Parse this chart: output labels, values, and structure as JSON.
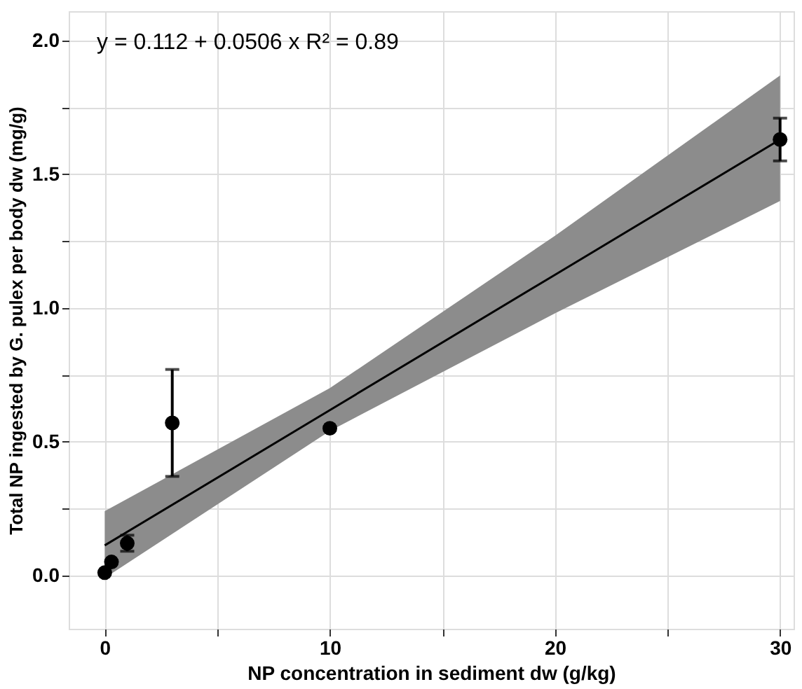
{
  "chart_data": {
    "type": "scatter",
    "xlabel": "NP concentration in sediment dw (g/kg)",
    "ylabel": "Total NP ingested by G. pulex per body dw (mg/g)",
    "x": [
      0,
      0.3,
      1,
      3,
      10,
      30
    ],
    "series": [
      {
        "color": "#000000",
        "marker": "circle",
        "values": [
          0.01,
          0.05,
          0.12,
          0.57,
          0.55,
          1.63
        ],
        "errors": [
          null,
          null,
          0.03,
          [
            0.37,
            0.77
          ],
          null,
          [
            1.55,
            1.71
          ]
        ]
      },
      {
        "type": "line",
        "color": "#000000",
        "line_style": "solid",
        "x": [
          0,
          10,
          20,
          30
        ],
        "values": [
          0.112,
          0.618,
          1.124,
          1.63
        ],
        "lower": [
          -0.01,
          0.54,
          0.98,
          1.4
        ],
        "upper": [
          0.24,
          0.7,
          1.27,
          1.87
        ]
      }
    ],
    "xlim": [
      -1.6,
      30.6
    ],
    "ylim": [
      -0.2,
      2.11
    ],
    "xticks": [
      0,
      {
        "value": 5,
        "label": null
      },
      10,
      {
        "value": 15,
        "label": null
      },
      20,
      {
        "value": 25,
        "label": null
      },
      30
    ],
    "yticks": [
      {
        "value": 0,
        "label": "0.0"
      },
      {
        "value": 0.25,
        "label": null
      },
      0.5,
      {
        "value": 0.75,
        "label": null
      },
      {
        "value": 1,
        "label": "1.0"
      },
      {
        "value": 1.25,
        "label": null
      },
      1.5,
      {
        "value": 1.75,
        "label": null
      },
      {
        "value": 2,
        "label": "2.0"
      }
    ],
    "grid": true,
    "annotations": [
      "y = 0.112 + 0.0506 x   R² = 0.89"
    ]
  }
}
